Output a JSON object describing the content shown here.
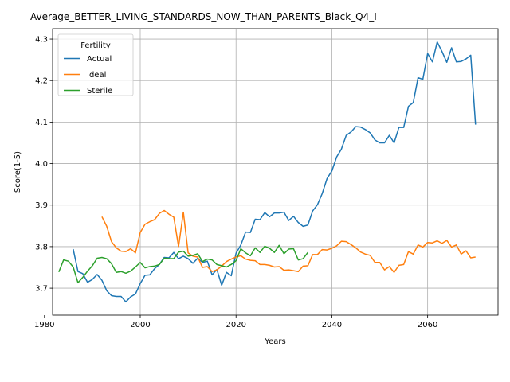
{
  "chart_data": {
    "type": "line",
    "title": "Average_BETTER_LIVING_STANDARDS_NOW_THAN_PARENTS_Black_Q4_I",
    "xlabel": "Years",
    "ylabel": "Score(1-5)",
    "xlim": [
      1981.7,
      2074.7
    ],
    "ylim": [
      3.635,
      4.325
    ],
    "xticks": [
      1980,
      2000,
      2020,
      2040,
      2060
    ],
    "yticks": [
      3.7,
      3.8,
      3.9,
      4.0,
      4.1,
      4.2,
      4.3
    ],
    "ytick_labels": [
      "3.7",
      "3.8",
      "3.9",
      "4.0",
      "4.1",
      "4.2",
      "4.3"
    ],
    "grid": true,
    "legend": {
      "title": "Fertility",
      "placement": "top-left"
    },
    "series": [
      {
        "name": "Actual",
        "color": "#1f77b4",
        "start_year": 1986,
        "values": [
          3.794,
          3.74,
          3.735,
          3.714,
          3.721,
          3.733,
          3.719,
          3.694,
          3.682,
          3.68,
          3.68,
          3.667,
          3.679,
          3.686,
          3.711,
          3.731,
          3.732,
          3.747,
          3.757,
          3.774,
          3.773,
          3.786,
          3.771,
          3.777,
          3.771,
          3.76,
          3.772,
          3.762,
          3.765,
          3.732,
          3.745,
          3.707,
          3.738,
          3.73,
          3.784,
          3.804,
          3.835,
          3.834,
          3.866,
          3.865,
          3.882,
          3.872,
          3.881,
          3.881,
          3.883,
          3.863,
          3.873,
          3.858,
          3.849,
          3.852,
          3.886,
          3.901,
          3.928,
          3.964,
          3.982,
          4.016,
          4.035,
          4.068,
          4.076,
          4.089,
          4.088,
          4.082,
          4.074,
          4.057,
          4.05,
          4.05,
          4.068,
          4.05,
          4.087,
          4.087,
          4.138,
          4.147,
          4.207,
          4.203,
          4.265,
          4.245,
          4.293,
          4.27,
          4.244,
          4.279,
          4.245,
          4.246,
          4.252,
          4.261,
          4.094
        ]
      },
      {
        "name": "Ideal",
        "color": "#ff7f0e",
        "start_year": 1992,
        "values": [
          3.872,
          3.849,
          3.812,
          3.797,
          3.789,
          3.788,
          3.795,
          3.785,
          3.834,
          3.854,
          3.86,
          3.865,
          3.88,
          3.887,
          3.878,
          3.871,
          3.8,
          3.883,
          3.785,
          3.777,
          3.775,
          3.75,
          3.752,
          3.74,
          3.744,
          3.753,
          3.764,
          3.77,
          3.775,
          3.778,
          3.77,
          3.767,
          3.766,
          3.757,
          3.757,
          3.755,
          3.751,
          3.752,
          3.743,
          3.744,
          3.742,
          3.74,
          3.753,
          3.754,
          3.781,
          3.781,
          3.793,
          3.792,
          3.796,
          3.802,
          3.813,
          3.812,
          3.805,
          3.797,
          3.787,
          3.782,
          3.779,
          3.762,
          3.762,
          3.744,
          3.752,
          3.738,
          3.755,
          3.757,
          3.788,
          3.782,
          3.804,
          3.799,
          3.81,
          3.809,
          3.814,
          3.808,
          3.815,
          3.799,
          3.804,
          3.782,
          3.79,
          3.773,
          3.775
        ]
      },
      {
        "name": "Sterile",
        "color": "#2ca02c",
        "start_year": 1983,
        "values": [
          3.739,
          3.768,
          3.765,
          3.751,
          3.713,
          3.726,
          3.741,
          3.754,
          3.772,
          3.774,
          3.771,
          3.759,
          3.738,
          3.74,
          3.736,
          3.741,
          3.751,
          3.762,
          3.749,
          3.752,
          3.753,
          3.757,
          3.772,
          3.771,
          3.771,
          3.787,
          3.789,
          3.777,
          3.779,
          3.783,
          3.764,
          3.77,
          3.768,
          3.757,
          3.754,
          3.751,
          3.757,
          3.766,
          3.795,
          3.785,
          3.778,
          3.797,
          3.786,
          3.801,
          3.796,
          3.786,
          3.803,
          3.783,
          3.794,
          3.795,
          3.768,
          3.771,
          3.786
        ]
      }
    ]
  }
}
